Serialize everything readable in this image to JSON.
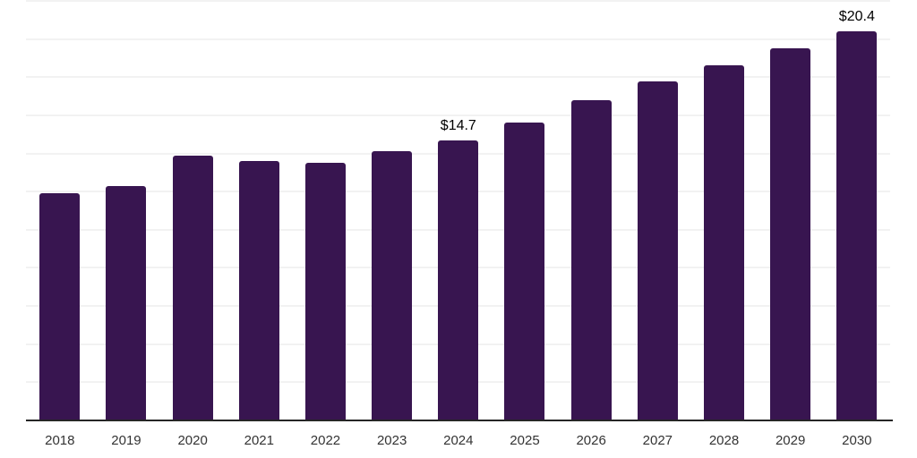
{
  "chart_data": {
    "type": "bar",
    "categories": [
      "2018",
      "2019",
      "2020",
      "2021",
      "2022",
      "2023",
      "2024",
      "2025",
      "2026",
      "2027",
      "2028",
      "2029",
      "2030"
    ],
    "values": [
      11.9,
      12.3,
      13.9,
      13.6,
      13.5,
      14.1,
      14.7,
      15.6,
      16.8,
      17.8,
      18.6,
      19.5,
      20.4
    ],
    "data_labels": [
      "",
      "",
      "",
      "",
      "",
      "",
      "$14.7",
      "",
      "",
      "",
      "",
      "",
      "$20.4"
    ],
    "title": "",
    "xlabel": "",
    "ylabel": "",
    "ylim": [
      0,
      22
    ],
    "grid_step": 2,
    "grid": "horizontal",
    "y_tick_labels_visible": false,
    "legend": "none",
    "colors": {
      "bar": "#381550",
      "gridline": "#f2f2f2",
      "axis_line": "#262626",
      "tick_label": "#333333",
      "data_label": "#000000",
      "background": "#ffffff"
    }
  }
}
